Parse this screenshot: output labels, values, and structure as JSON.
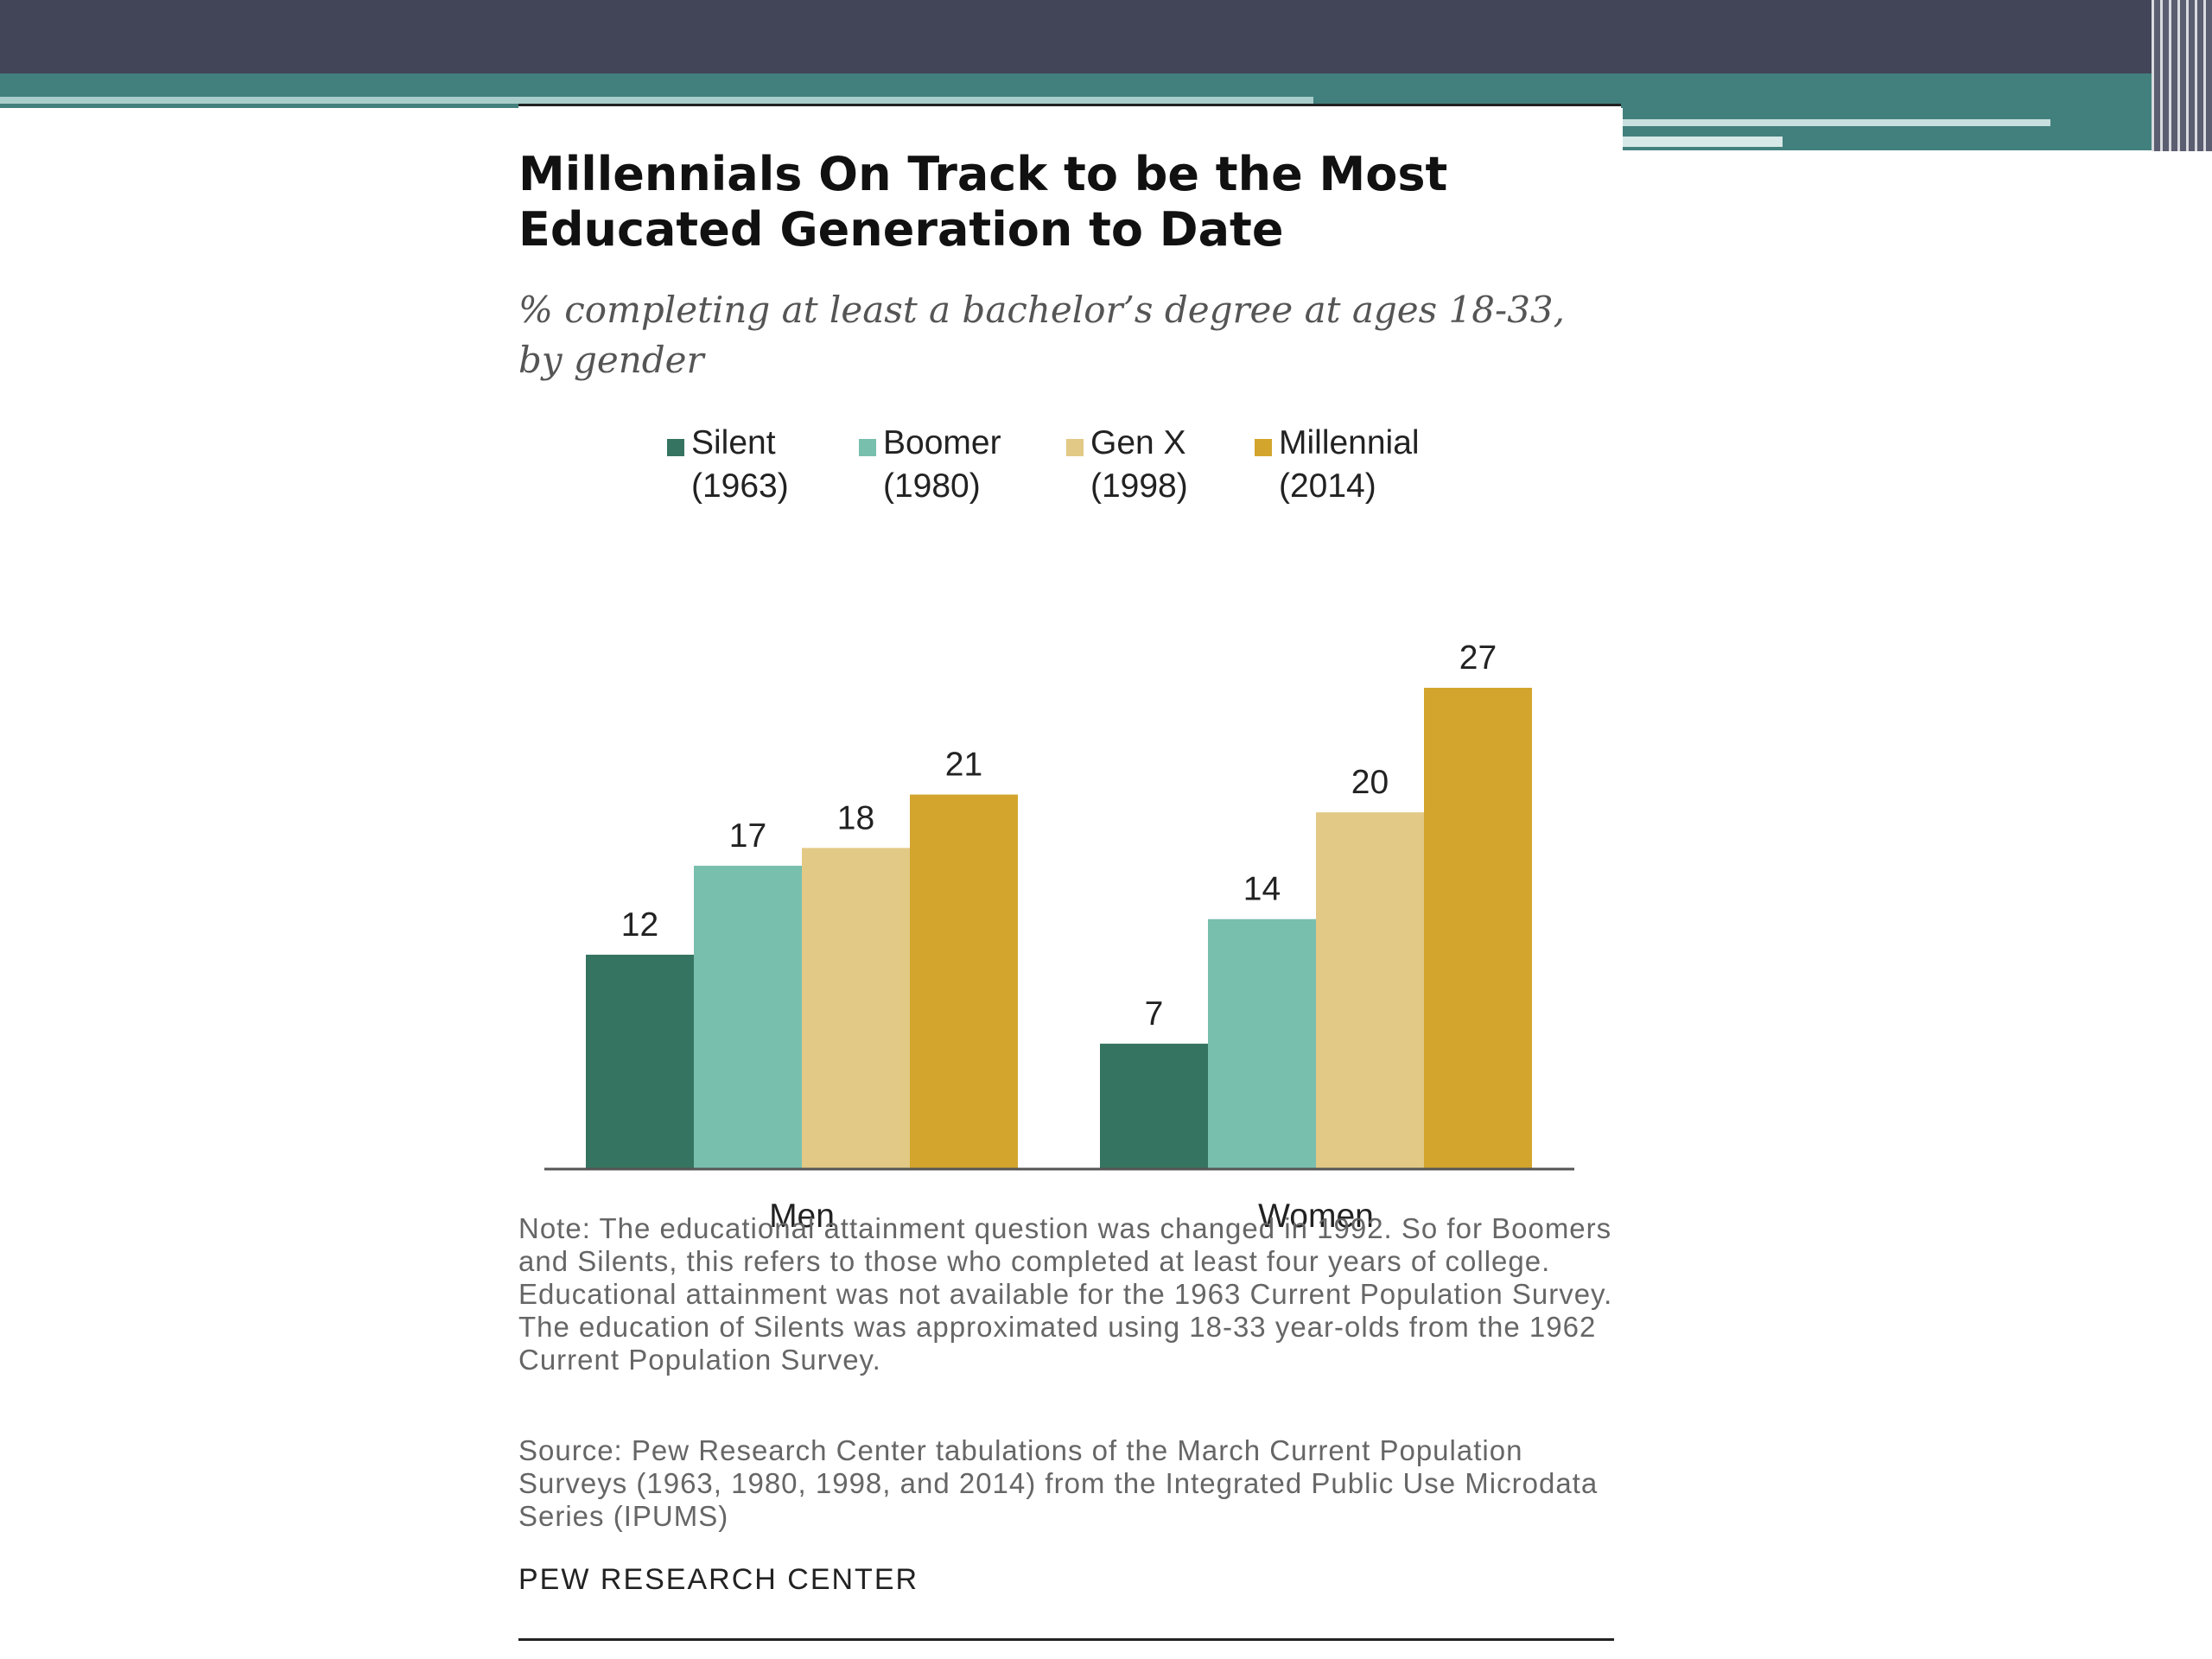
{
  "chart_data": {
    "type": "bar",
    "title": "Millennials On Track to be the Most Educated Generation to Date",
    "subtitle": "% completing at least a bachelor’s degree at ages 18-33, by gender",
    "categories": [
      "Men",
      "Women"
    ],
    "series": [
      {
        "name": "Silent",
        "year": "(1963)",
        "color": "#357460",
        "values": [
          12,
          7
        ]
      },
      {
        "name": "Boomer",
        "year": "(1980)",
        "color": "#79bfae",
        "values": [
          17,
          14
        ]
      },
      {
        "name": "Gen X",
        "year": "(1998)",
        "color": "#e2c985",
        "values": [
          18,
          20
        ]
      },
      {
        "name": "Millennial",
        "year": "(2014)",
        "color": "#d3a52d",
        "values": [
          21,
          27
        ]
      }
    ],
    "xlabel": "",
    "ylabel": "",
    "ylim": [
      0,
      27
    ],
    "grid": false,
    "legend": "top"
  },
  "notes": {
    "note": "Note: The educational attainment question was changed in 1992. So for Boomers and Silents, this refers to those who completed at least four years of college. Educational attainment was not available for the 1963 Current Population Survey. The education of Silents was approximated using 18-33 year-olds from the 1962 Current Population Survey.",
    "source": "Source: Pew Research Center tabulations of the March Current Population Surveys (1963, 1980, 1998, and 2014) from the Integrated Public Use Microdata Series (IPUMS)",
    "brand": "PEW RESEARCH CENTER"
  }
}
